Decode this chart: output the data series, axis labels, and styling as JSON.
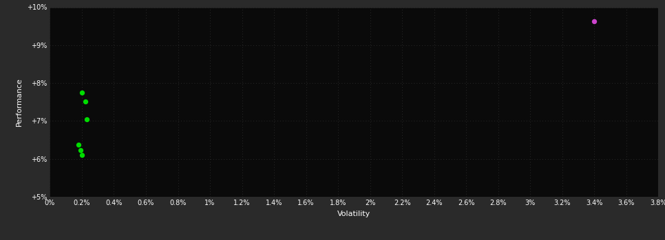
{
  "background_color": "#2a2a2a",
  "plot_bg_color": "#0a0a0a",
  "text_color": "#ffffff",
  "xlabel": "Volatility",
  "ylabel": "Performance",
  "xlim": [
    0.0,
    0.038
  ],
  "ylim": [
    0.05,
    0.1
  ],
  "xtick_vals": [
    0.0,
    0.002,
    0.004,
    0.006,
    0.008,
    0.01,
    0.012,
    0.014,
    0.016,
    0.018,
    0.02,
    0.022,
    0.024,
    0.026,
    0.028,
    0.03,
    0.032,
    0.034,
    0.036,
    0.038
  ],
  "xtick_labels": [
    "0%",
    "0.2%",
    "0.4%",
    "0.6%",
    "0.8%",
    "1%",
    "1.2%",
    "1.4%",
    "1.6%",
    "1.8%",
    "2%",
    "2.2%",
    "2.4%",
    "2.6%",
    "2.8%",
    "3%",
    "3.2%",
    "3.4%",
    "3.6%",
    "3.8%"
  ],
  "ytick_vals": [
    0.05,
    0.06,
    0.07,
    0.08,
    0.09,
    0.1
  ],
  "ytick_labels": [
    "+5%",
    "+6%",
    "+7%",
    "+8%",
    "+9%",
    "+10%"
  ],
  "green_points": [
    [
      0.002,
      0.0775
    ],
    [
      0.0022,
      0.0752
    ],
    [
      0.0023,
      0.0705
    ],
    [
      0.0018,
      0.0637
    ],
    [
      0.0019,
      0.0623
    ],
    [
      0.002,
      0.061
    ]
  ],
  "magenta_points": [
    [
      0.034,
      0.0963
    ]
  ],
  "green_color": "#00dd00",
  "magenta_color": "#cc44cc",
  "marker_size": 28
}
